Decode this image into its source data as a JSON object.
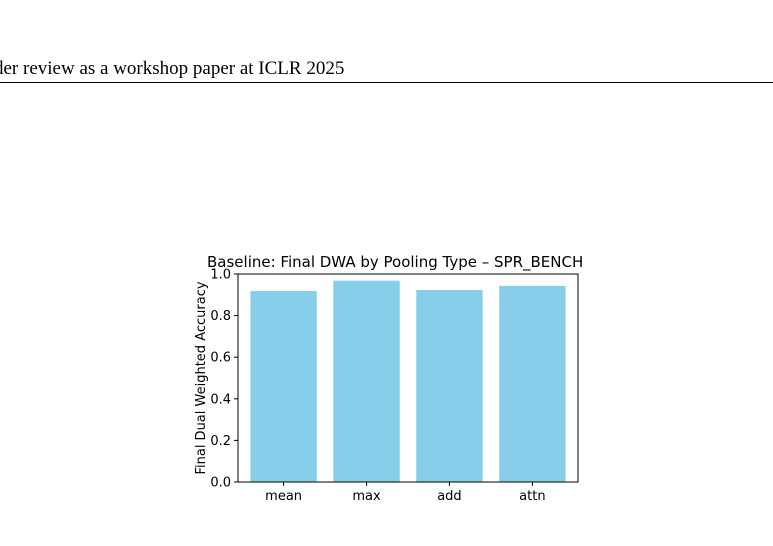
{
  "header": {
    "text": "der review as a workshop paper at ICLR 2025"
  },
  "chart_data": {
    "type": "bar",
    "title": "Baseline: Final DWA by Pooling Type – SPR_BENCH",
    "xlabel": "",
    "ylabel": "Final Dual Weighted Accuracy",
    "categories": [
      "mean",
      "max",
      "add",
      "attn"
    ],
    "values": [
      0.918,
      0.968,
      0.923,
      0.943
    ],
    "ylim": [
      0,
      1.0
    ],
    "yticks": [
      0.0,
      0.2,
      0.4,
      0.6,
      0.8,
      1.0
    ],
    "ytick_labels": [
      "0.0",
      "0.2",
      "0.4",
      "0.6",
      "0.8",
      "1.0"
    ],
    "grid": false,
    "bar_color": "#87ceeb"
  }
}
